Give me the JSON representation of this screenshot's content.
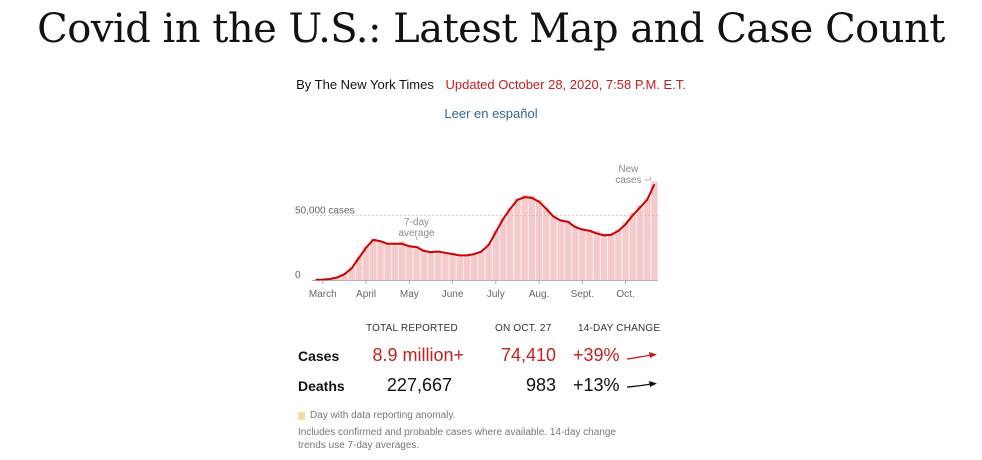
{
  "headline": "Covid in the U.S.: Latest Map and Case Count",
  "byline": "By The New York Times",
  "updated": "Updated October 28, 2020, 7:58 P.M. E.T.",
  "spanish_link": "Leer en español",
  "colors": {
    "accent_red": "#c41e1e",
    "bar_fill": "#f6c9cb",
    "line": "#cc0000",
    "link": "#326891",
    "anomaly": "#f6dca0"
  },
  "chart_data": {
    "type": "bar",
    "title": "",
    "xlabel": "",
    "ylabel": "",
    "x_ticks": [
      "March",
      "April",
      "May",
      "June",
      "July",
      "Aug.",
      "Sept.",
      "Oct."
    ],
    "y_ticks": [
      {
        "value": 0,
        "label": "0"
      },
      {
        "value": 50000,
        "label": "50,000 cases"
      }
    ],
    "ylim": [
      0,
      85000
    ],
    "annotations": [
      {
        "text": [
          "7-day",
          "average"
        ],
        "anchor_value": 32000
      },
      {
        "text": [
          "New",
          "cases"
        ],
        "anchor_value": 78000
      }
    ],
    "series": [
      {
        "name": "New cases",
        "kind": "bars",
        "start_date": "2020-03-01",
        "values": [
          100,
          400,
          1000,
          2500,
          5000,
          10000,
          18000,
          26000,
          32000,
          30000,
          28000,
          29000,
          30000,
          27000,
          26000,
          23000,
          22000,
          22500,
          21000,
          21000,
          19000,
          19000,
          20000,
          22000,
          28000,
          38000,
          48000,
          56000,
          63000,
          66000,
          65000,
          62000,
          56000,
          50000,
          47000,
          46000,
          42000,
          40000,
          39000,
          38000,
          36000,
          36000,
          39000,
          45000,
          52000,
          58000,
          63000,
          76000
        ]
      },
      {
        "name": "7-day average",
        "kind": "line",
        "start_date": "2020-03-01",
        "values": [
          100,
          300,
          800,
          2000,
          4500,
          9000,
          17000,
          25000,
          31000,
          30000,
          28000,
          28000,
          28000,
          26000,
          25500,
          22500,
          21500,
          22000,
          21000,
          20000,
          19000,
          19000,
          20000,
          22000,
          27000,
          37000,
          47000,
          55000,
          62000,
          64000,
          63500,
          60500,
          55000,
          49000,
          46000,
          45000,
          41000,
          39000,
          38000,
          36000,
          34500,
          35000,
          38000,
          43000,
          50000,
          56000,
          62000,
          74000
        ]
      }
    ],
    "anomaly_legend": "Day with data reporting anomaly."
  },
  "table": {
    "headers": [
      "TOTAL REPORTED",
      "ON OCT. 27",
      "14-DAY CHANGE"
    ],
    "rows": [
      {
        "label": "Cases",
        "total": "8.9 million+",
        "day": "74,410",
        "change": "+39%",
        "trend": "up-red"
      },
      {
        "label": "Deaths",
        "total": "227,667",
        "day": "983",
        "change": "+13%",
        "trend": "up-black"
      }
    ]
  },
  "footnote": "Includes confirmed and probable cases where available. 14-day change trends use 7-day averages."
}
